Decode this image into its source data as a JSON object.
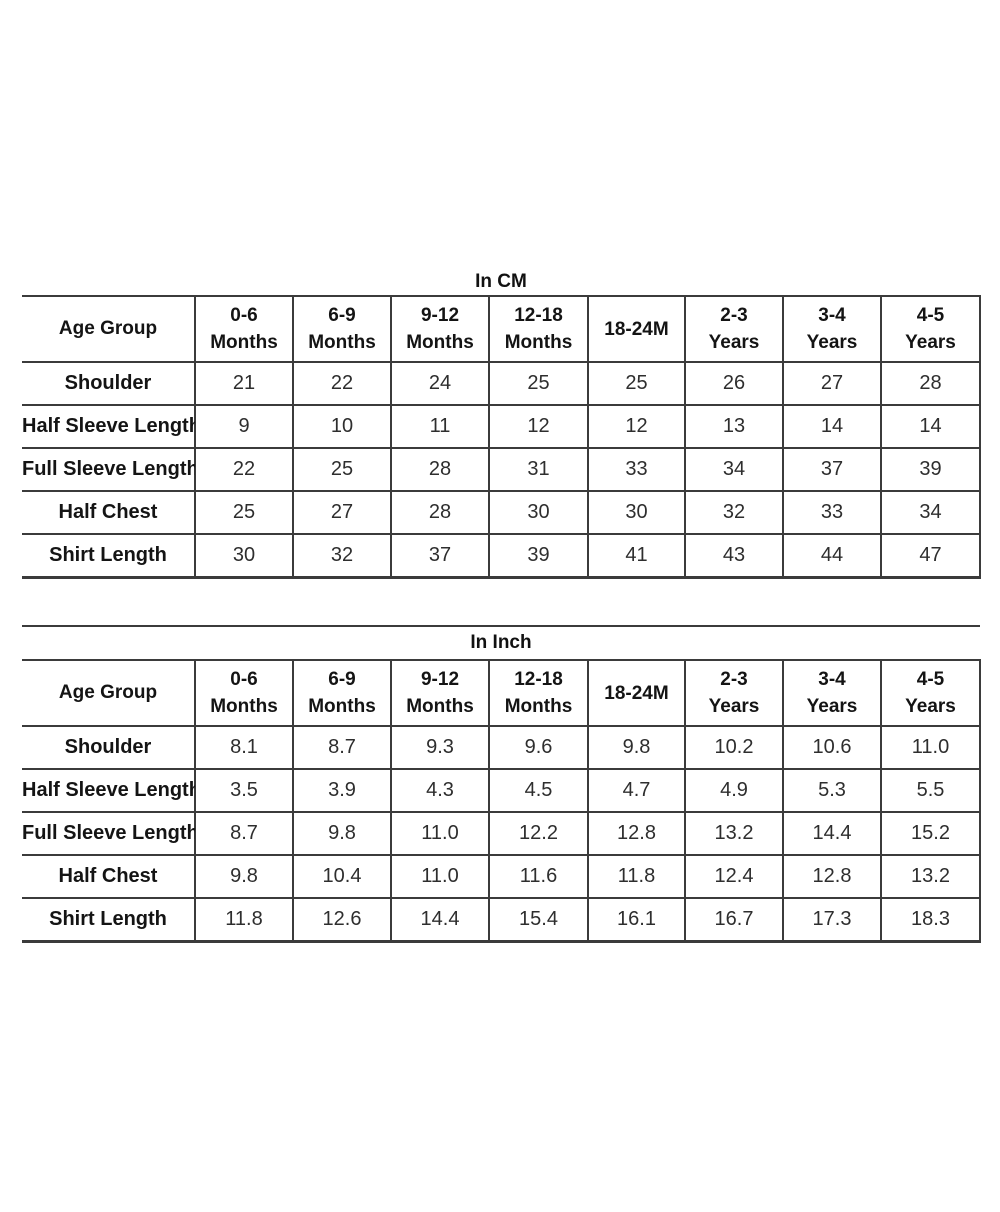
{
  "page": {
    "background": "#ffffff",
    "border_color": "#3b3b3b",
    "text_color": "#141414"
  },
  "tables": [
    {
      "title": "In CM",
      "corner_label": "Age Group",
      "columns": [
        [
          "0-6",
          "Months"
        ],
        [
          "6-9",
          "Months"
        ],
        [
          "9-12",
          "Months"
        ],
        [
          "12-18",
          "Months"
        ],
        [
          "18-24M"
        ],
        [
          "2-3",
          "Years"
        ],
        [
          "3-4",
          "Years"
        ],
        [
          "4-5",
          "Years"
        ]
      ],
      "rows": [
        {
          "label": "Shoulder",
          "values": [
            "21",
            "22",
            "24",
            "25",
            "25",
            "26",
            "27",
            "28"
          ]
        },
        {
          "label": "Half Sleeve Length",
          "values": [
            "9",
            "10",
            "11",
            "12",
            "12",
            "13",
            "14",
            "14"
          ]
        },
        {
          "label": "Full Sleeve Length",
          "values": [
            "22",
            "25",
            "28",
            "31",
            "33",
            "34",
            "37",
            "39"
          ]
        },
        {
          "label": "Half Chest",
          "values": [
            "25",
            "27",
            "28",
            "30",
            "30",
            "32",
            "33",
            "34"
          ]
        },
        {
          "label": "Shirt Length",
          "values": [
            "30",
            "32",
            "37",
            "39",
            "41",
            "43",
            "44",
            "47"
          ]
        }
      ]
    },
    {
      "title": "In Inch",
      "corner_label": "Age Group",
      "columns": [
        [
          "0-6",
          "Months"
        ],
        [
          "6-9",
          "Months"
        ],
        [
          "9-12",
          "Months"
        ],
        [
          "12-18",
          "Months"
        ],
        [
          "18-24M"
        ],
        [
          "2-3",
          "Years"
        ],
        [
          "3-4",
          "Years"
        ],
        [
          "4-5",
          "Years"
        ]
      ],
      "rows": [
        {
          "label": "Shoulder",
          "values": [
            "8.1",
            "8.7",
            "9.3",
            "9.6",
            "9.8",
            "10.2",
            "10.6",
            "11.0"
          ]
        },
        {
          "label": "Half Sleeve Length",
          "values": [
            "3.5",
            "3.9",
            "4.3",
            "4.5",
            "4.7",
            "4.9",
            "5.3",
            "5.5"
          ]
        },
        {
          "label": "Full Sleeve Length",
          "values": [
            "8.7",
            "9.8",
            "11.0",
            "12.2",
            "12.8",
            "13.2",
            "14.4",
            "15.2"
          ]
        },
        {
          "label": "Half Chest",
          "values": [
            "9.8",
            "10.4",
            "11.0",
            "11.6",
            "11.8",
            "12.4",
            "12.8",
            "13.2"
          ]
        },
        {
          "label": "Shirt Length",
          "values": [
            "11.8",
            "12.6",
            "14.4",
            "15.4",
            "16.1",
            "16.7",
            "17.3",
            "18.3"
          ]
        }
      ]
    }
  ]
}
